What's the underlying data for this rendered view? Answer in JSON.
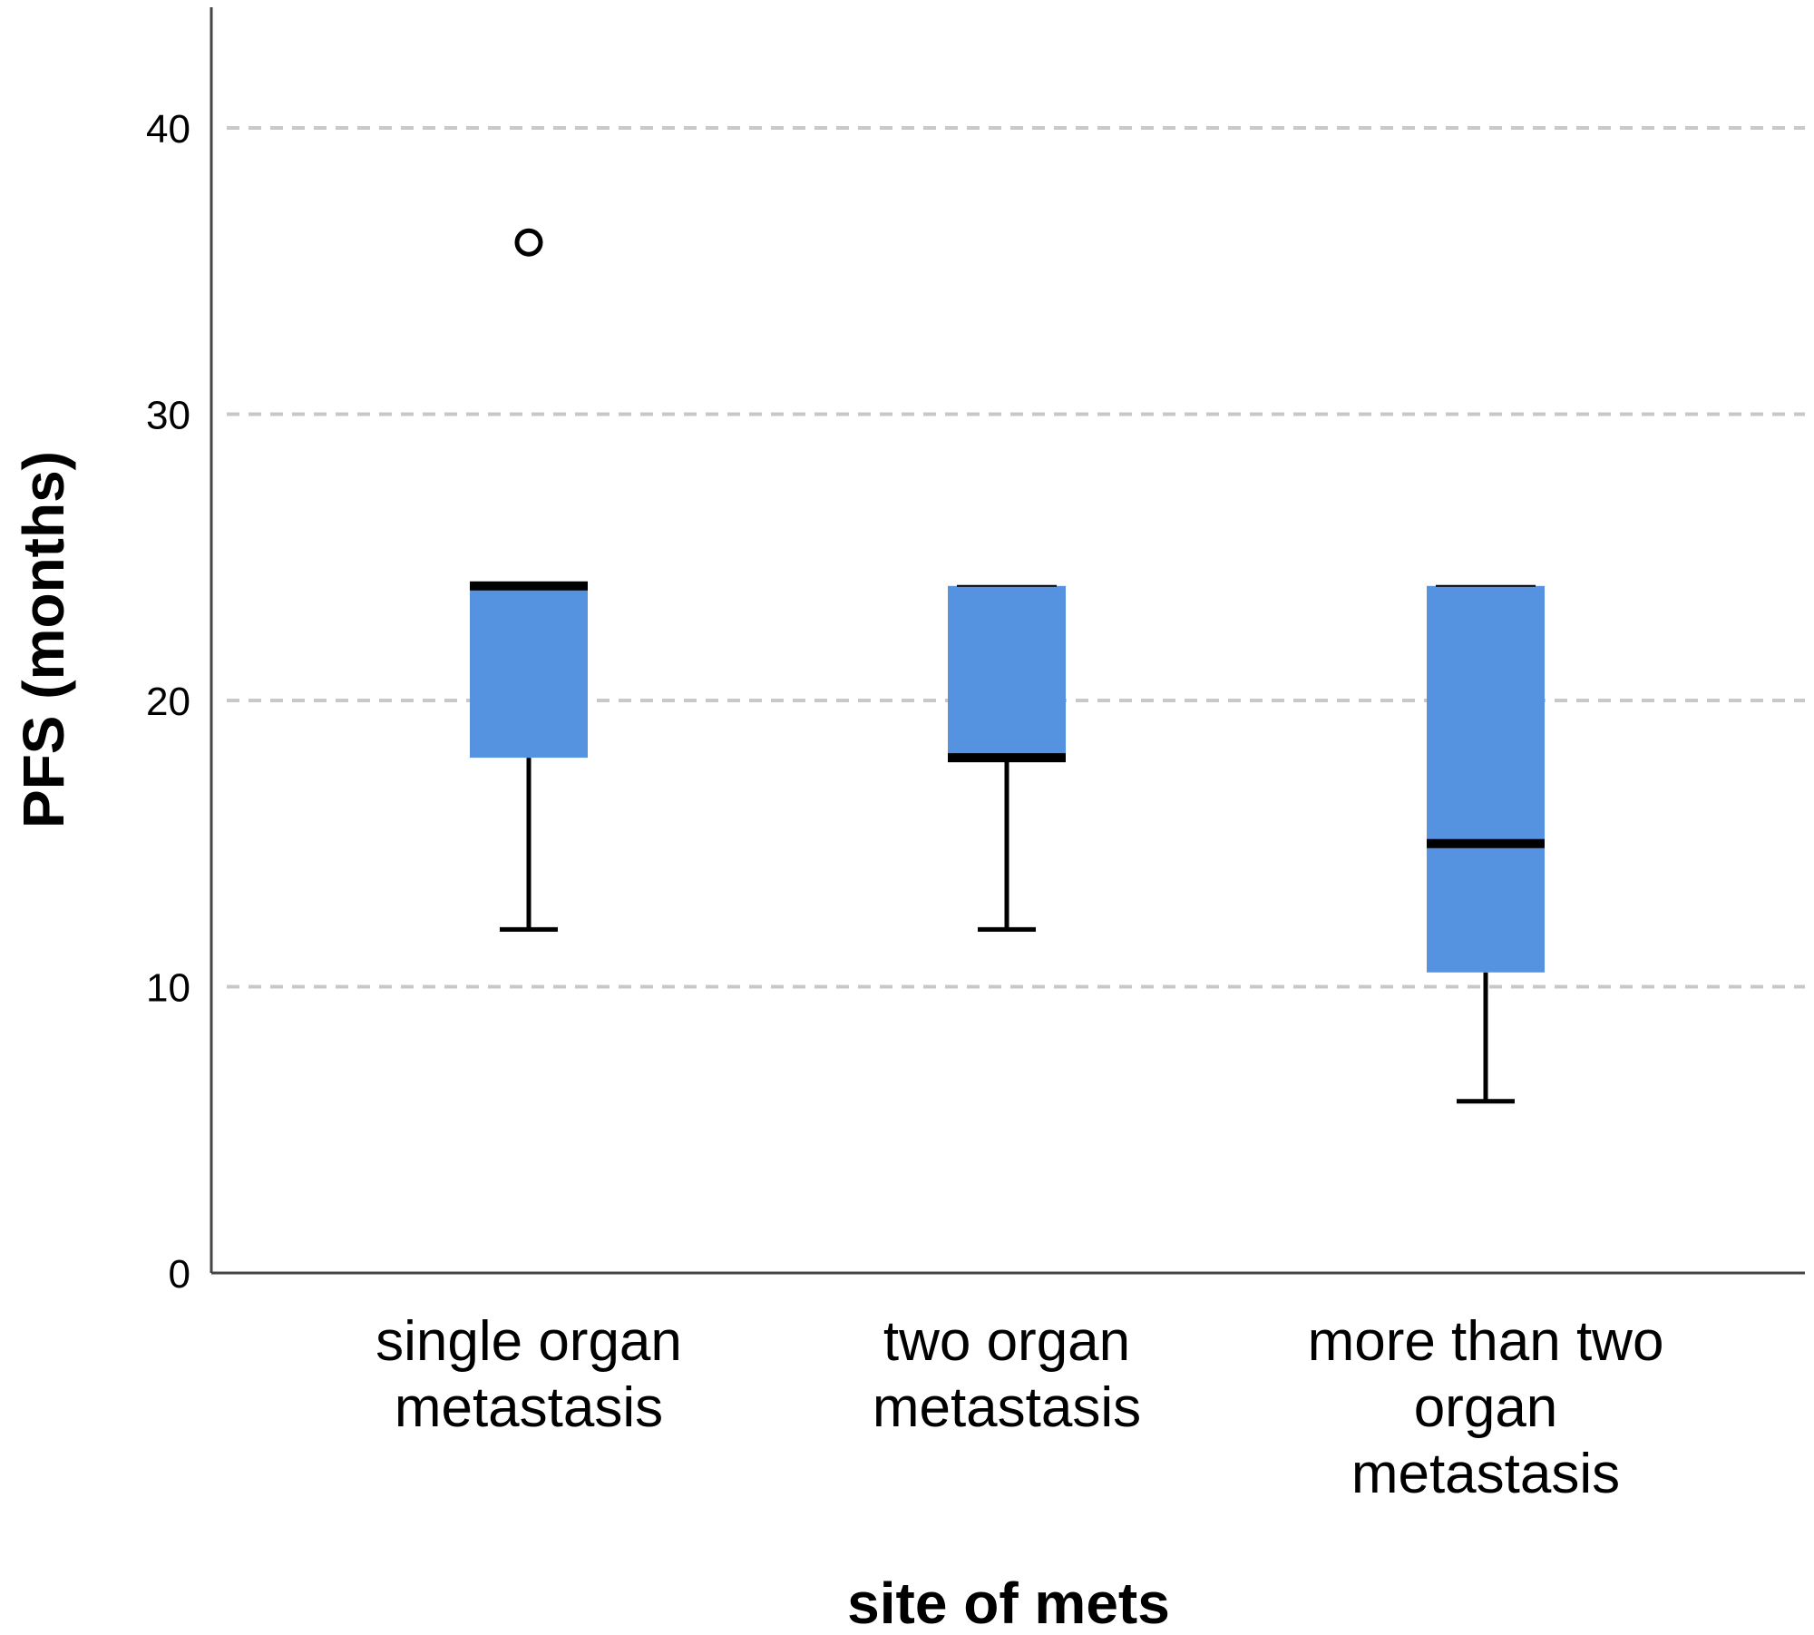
{
  "chart_data": {
    "type": "box",
    "title": "",
    "xlabel": "site of mets",
    "ylabel": "PFS (months)",
    "ylim": [
      0,
      44
    ],
    "yticks": [
      0,
      10,
      20,
      30,
      40
    ],
    "grid": "horizontal dashed",
    "box_color": "#5593e0",
    "categories": [
      {
        "lines": [
          "single organ",
          "metastasis"
        ]
      },
      {
        "lines": [
          "two organ",
          "metastasis"
        ]
      },
      {
        "lines": [
          "more than two",
          "organ",
          "metastasis"
        ]
      }
    ],
    "boxes": [
      {
        "whisker_low": 12,
        "q1": 18,
        "median": 24,
        "q3": 24,
        "whisker_high": 24,
        "outliers": [
          36
        ]
      },
      {
        "whisker_low": 12,
        "q1": 18,
        "median": 18,
        "q3": 24,
        "whisker_high": 24,
        "outliers": []
      },
      {
        "whisker_low": 6,
        "q1": 10.5,
        "median": 15,
        "q3": 24,
        "whisker_high": 24,
        "outliers": []
      }
    ]
  }
}
